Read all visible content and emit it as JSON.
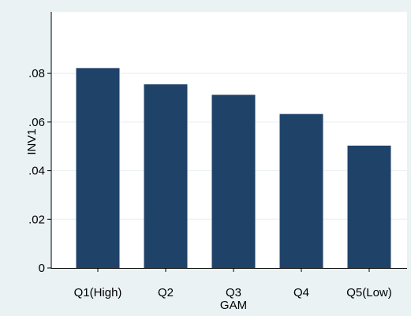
{
  "chart_data": {
    "type": "bar",
    "categories": [
      "Q1(High)",
      "Q2",
      "Q3",
      "Q4",
      "Q5(Low)"
    ],
    "values": [
      0.0822,
      0.0755,
      0.0712,
      0.0633,
      0.0503
    ],
    "ylabel": "INV1",
    "xlabel": "GAM",
    "ylim": [
      0,
      0.105
    ],
    "yticks": [
      0,
      0.02,
      0.04,
      0.06,
      0.08
    ],
    "ytick_labels": [
      "0",
      ".02",
      ".04",
      ".06",
      ".08"
    ],
    "grid": true,
    "colors": {
      "bar": "#1f4269",
      "plot_background": "#ffffff",
      "outer_background": "#eaf2f3",
      "grid": "#eaf2f3",
      "axis": "#000000"
    }
  }
}
